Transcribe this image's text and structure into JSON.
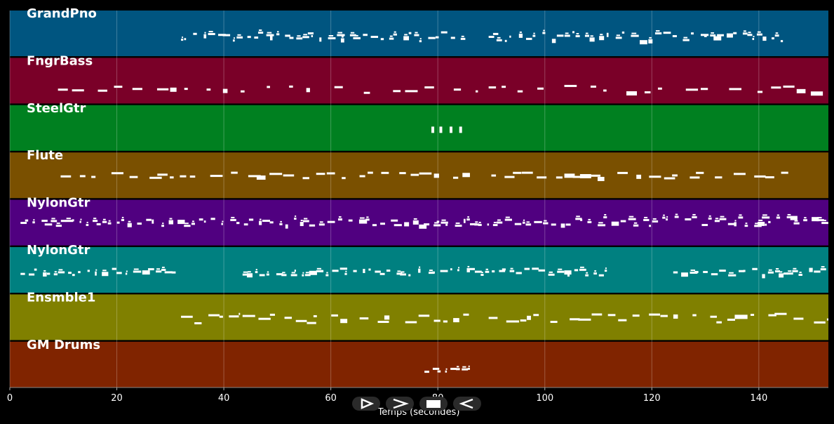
{
  "chart_data": {
    "type": "piano-roll",
    "xlabel": "Temps (secondes)",
    "xlim": [
      0,
      153
    ],
    "xticks": [
      0,
      20,
      40,
      60,
      80,
      100,
      120,
      140
    ],
    "grid": true,
    "tracks": [
      {
        "name": "GrandPno",
        "color": "#005580",
        "segments": [
          {
            "start": 32,
            "end": 86,
            "density": "dense",
            "band": [
              0.45,
              0.65
            ]
          },
          {
            "start": 89.5,
            "end": 144.5,
            "density": "dense",
            "band": [
              0.45,
              0.65
            ]
          }
        ]
      },
      {
        "name": "FngrBass",
        "color": "#7a0028",
        "segments": [
          {
            "start": 9,
            "end": 87.5,
            "density": "sparse",
            "band": [
              0.6,
              0.75
            ]
          },
          {
            "start": 89.5,
            "end": 153,
            "density": "sparse",
            "band": [
              0.55,
              0.75
            ]
          }
        ]
      },
      {
        "name": "SteelGtr",
        "color": "#008020",
        "segments": [
          {
            "start": 78.5,
            "end": 84.5,
            "density": "few",
            "band": [
              0.45,
              0.58
            ]
          }
        ]
      },
      {
        "name": "Flute",
        "color": "#7a5000",
        "segments": [
          {
            "start": 9.5,
            "end": 86,
            "density": "medium",
            "band": [
              0.42,
              0.55
            ]
          },
          {
            "start": 90,
            "end": 145.5,
            "density": "medium",
            "band": [
              0.42,
              0.55
            ]
          }
        ]
      },
      {
        "name": "NylonGtr",
        "color": "#500080",
        "segments": [
          {
            "start": 2,
            "end": 86,
            "density": "dense",
            "band": [
              0.38,
              0.55
            ]
          },
          {
            "start": 86,
            "end": 153,
            "density": "dense",
            "band": [
              0.35,
              0.55
            ]
          }
        ]
      },
      {
        "name": "NylonGtr",
        "color": "#008080",
        "segments": [
          {
            "start": 2,
            "end": 31,
            "density": "dense",
            "band": [
              0.45,
              0.6
            ]
          },
          {
            "start": 43.5,
            "end": 86,
            "density": "dense",
            "band": [
              0.45,
              0.6
            ]
          },
          {
            "start": 86,
            "end": 112,
            "density": "dense",
            "band": [
              0.45,
              0.6
            ]
          },
          {
            "start": 124,
            "end": 153,
            "density": "dense",
            "band": [
              0.45,
              0.6
            ]
          }
        ]
      },
      {
        "name": "Ensmble1",
        "color": "#808000",
        "segments": [
          {
            "start": 32,
            "end": 43,
            "density": "medium",
            "band": [
              0.4,
              0.62
            ]
          },
          {
            "start": 43.5,
            "end": 86,
            "density": "medium",
            "band": [
              0.4,
              0.62
            ]
          },
          {
            "start": 89.5,
            "end": 153,
            "density": "medium",
            "band": [
              0.4,
              0.62
            ]
          }
        ]
      },
      {
        "name": "GM Drums",
        "color": "#802400",
        "segments": [
          {
            "start": 77.5,
            "end": 86,
            "density": "dense",
            "band": [
              0.55,
              0.75
            ]
          }
        ]
      }
    ]
  },
  "controls": [
    {
      "name": "play-button",
      "icon": "play-icon"
    },
    {
      "name": "forward-button",
      "icon": "forward-icon"
    },
    {
      "name": "stop-button",
      "icon": "stop-icon"
    },
    {
      "name": "rewind-button",
      "icon": "rewind-icon"
    }
  ]
}
